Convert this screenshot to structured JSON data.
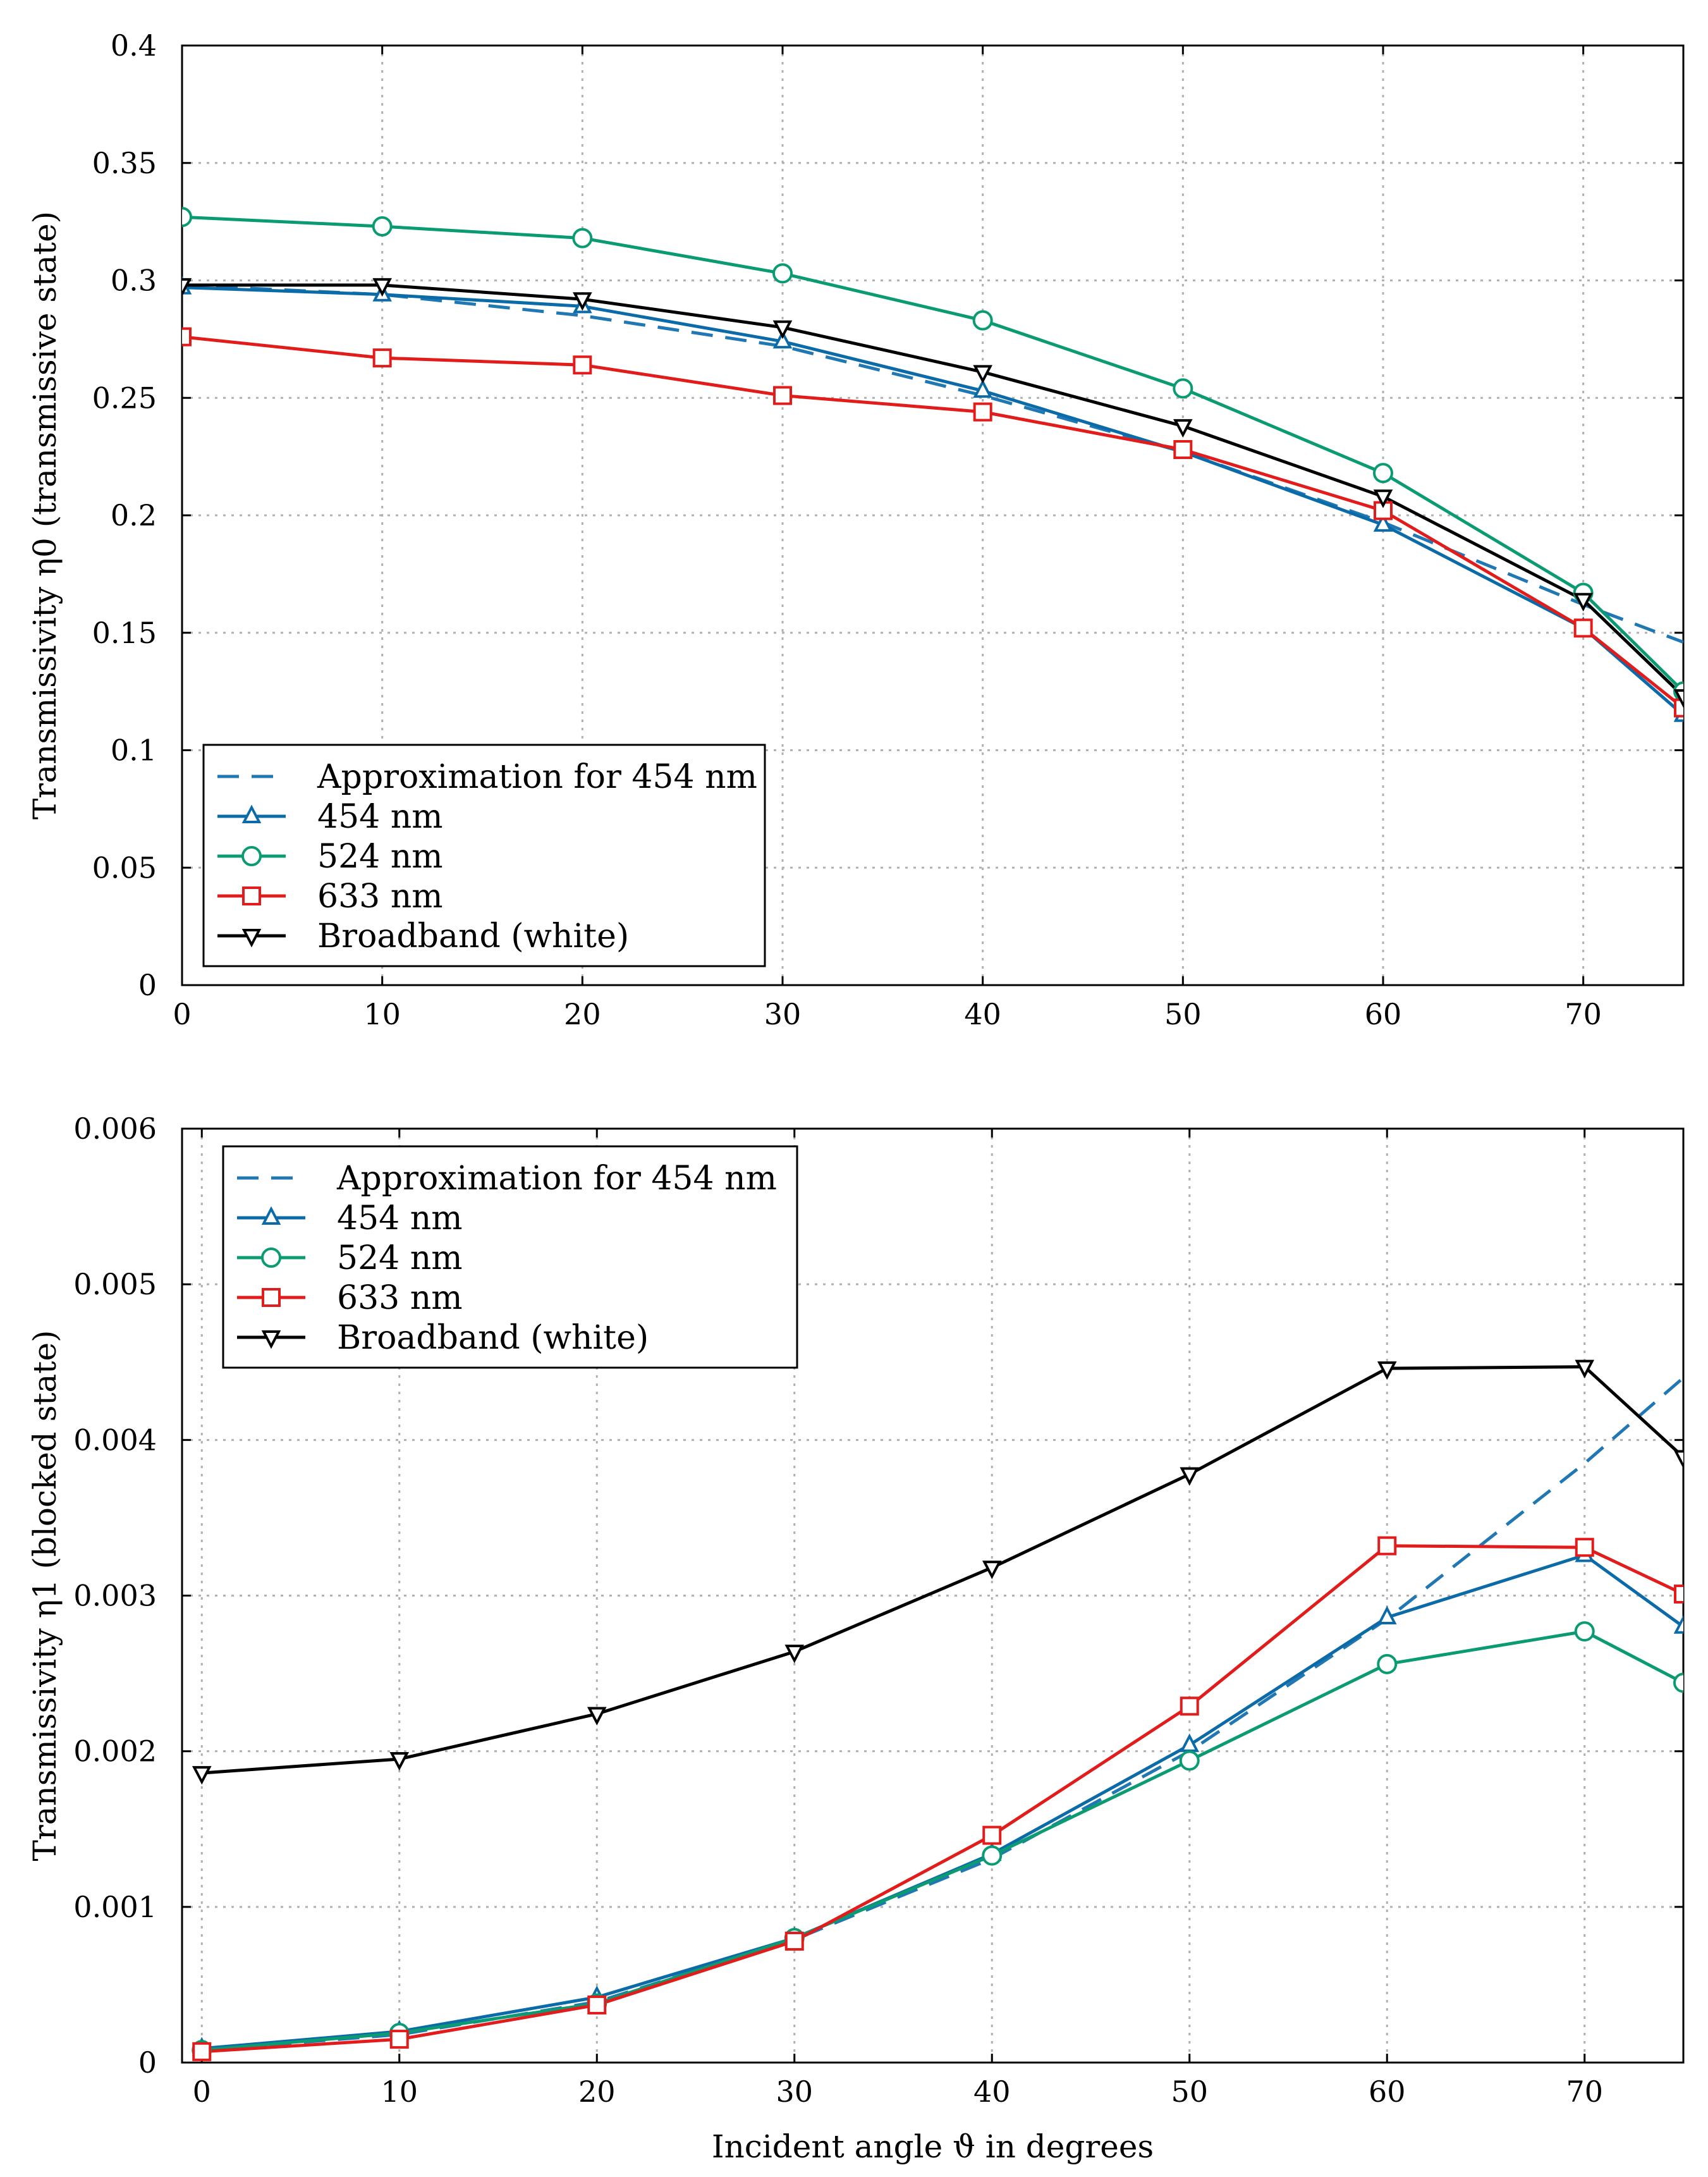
{
  "colors": {
    "approx": "#1f77b4",
    "nm454": "#0b6aa8",
    "nm524": "#0a9b73",
    "nm633": "#e21b1b",
    "white": "#000000"
  },
  "chart_data": [
    {
      "type": "line",
      "id": "top",
      "xlabel": "",
      "ylabel": "Transmissivity η0 (transmissive state)",
      "xlim": [
        0,
        75
      ],
      "ylim": [
        0,
        0.4
      ],
      "xticks": [
        0,
        10,
        20,
        30,
        40,
        50,
        60,
        70
      ],
      "xtick_labels": [
        "0",
        "10",
        "20",
        "30",
        "40",
        "50",
        "60",
        "70"
      ],
      "yticks": [
        0,
        0.05,
        0.1,
        0.15,
        0.2,
        0.25,
        0.3,
        0.35,
        0.4
      ],
      "ytick_labels": [
        "0",
        "0.05",
        "0.1",
        "0.15",
        "0.2",
        "0.25",
        "0.3",
        "0.35",
        "0.4"
      ],
      "legend_position": "bottom-left",
      "series": [
        {
          "name": "Approximation for 454 nm",
          "style": "dashed",
          "marker": "none",
          "color_key": "approx",
          "x": [
            0,
            10,
            20,
            30,
            40,
            50,
            60,
            70,
            75
          ],
          "y": [
            0.298,
            0.294,
            0.285,
            0.272,
            0.251,
            0.227,
            0.197,
            0.162,
            0.146
          ]
        },
        {
          "name": "454 nm",
          "style": "solid",
          "marker": "triangle-up",
          "color_key": "nm454",
          "x": [
            0,
            10,
            20,
            30,
            40,
            50,
            60,
            70,
            75
          ],
          "y": [
            0.297,
            0.294,
            0.289,
            0.274,
            0.253,
            0.227,
            0.196,
            0.152,
            0.115
          ]
        },
        {
          "name": "524 nm",
          "style": "solid",
          "marker": "circle",
          "color_key": "nm524",
          "x": [
            0,
            10,
            20,
            30,
            40,
            50,
            60,
            70,
            75
          ],
          "y": [
            0.327,
            0.323,
            0.318,
            0.303,
            0.283,
            0.254,
            0.218,
            0.167,
            0.125
          ]
        },
        {
          "name": "633 nm",
          "style": "solid",
          "marker": "square",
          "color_key": "nm633",
          "x": [
            0,
            10,
            20,
            30,
            40,
            50,
            60,
            70,
            75
          ],
          "y": [
            0.276,
            0.267,
            0.264,
            0.251,
            0.244,
            0.228,
            0.202,
            0.152,
            0.118
          ]
        },
        {
          "name": "Broadband (white)",
          "style": "solid",
          "marker": "triangle-down",
          "color_key": "white",
          "x": [
            0,
            10,
            20,
            30,
            40,
            50,
            60,
            70,
            75
          ],
          "y": [
            0.298,
            0.298,
            0.292,
            0.28,
            0.261,
            0.238,
            0.208,
            0.164,
            0.123
          ]
        }
      ]
    },
    {
      "type": "line",
      "id": "bottom",
      "xlabel": "Incident angle ϑ in degrees",
      "ylabel": "Transmissivity η1 (blocked state)",
      "xlim": [
        -1,
        75
      ],
      "ylim": [
        0,
        0.006
      ],
      "xticks": [
        0,
        10,
        20,
        30,
        40,
        50,
        60,
        70
      ],
      "xtick_labels": [
        "0",
        "10",
        "20",
        "30",
        "40",
        "50",
        "60",
        "70"
      ],
      "yticks": [
        0,
        0.001,
        0.002,
        0.003,
        0.004,
        0.005,
        0.006
      ],
      "ytick_labels": [
        "0",
        "0.001",
        "0.002",
        "0.003",
        "0.004",
        "0.005",
        "0.006"
      ],
      "legend_position": "top-left",
      "series": [
        {
          "name": "Approximation for 454 nm",
          "style": "dashed",
          "marker": "none",
          "color_key": "approx",
          "x": [
            0,
            10,
            20,
            30,
            40,
            50,
            60,
            70,
            75
          ],
          "y": [
            8e-05,
            0.00018,
            0.00039,
            0.00079,
            0.00131,
            0.002,
            0.00285,
            0.00385,
            0.0044
          ]
        },
        {
          "name": "454 nm",
          "style": "solid",
          "marker": "triangle-up",
          "color_key": "nm454",
          "x": [
            0,
            10,
            20,
            30,
            40,
            50,
            60,
            70,
            75
          ],
          "y": [
            9e-05,
            0.0002,
            0.00042,
            0.0008,
            0.00134,
            0.00204,
            0.00286,
            0.00326,
            0.0028
          ]
        },
        {
          "name": "524 nm",
          "style": "solid",
          "marker": "circle",
          "color_key": "nm524",
          "x": [
            0,
            10,
            20,
            30,
            40,
            50,
            60,
            70,
            75
          ],
          "y": [
            8e-05,
            0.00019,
            0.00038,
            0.0008,
            0.00133,
            0.00194,
            0.00256,
            0.00277,
            0.00244
          ]
        },
        {
          "name": "633 nm",
          "style": "solid",
          "marker": "square",
          "color_key": "nm633",
          "x": [
            0,
            10,
            20,
            30,
            40,
            50,
            60,
            70,
            75
          ],
          "y": [
            7e-05,
            0.00015,
            0.00037,
            0.00078,
            0.00146,
            0.00229,
            0.00332,
            0.00331,
            0.00301
          ]
        },
        {
          "name": "Broadband (white)",
          "style": "solid",
          "marker": "triangle-down",
          "color_key": "white",
          "x": [
            0,
            10,
            20,
            30,
            40,
            50,
            60,
            70,
            75
          ],
          "y": [
            0.00186,
            0.00195,
            0.00224,
            0.00264,
            0.00318,
            0.00378,
            0.00446,
            0.00447,
            0.00389
          ]
        }
      ]
    }
  ]
}
